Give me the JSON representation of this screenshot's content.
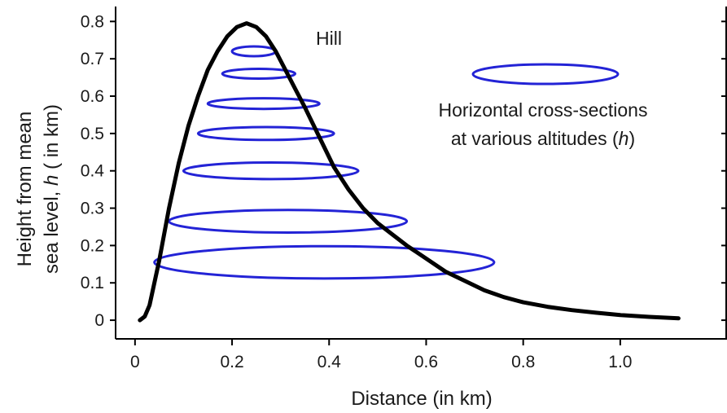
{
  "chart_data": {
    "type": "line",
    "title": "",
    "xlabel": "Distance (in km)",
    "ylabel_line1": "Height from mean",
    "ylabel_line2_prefix": "sea level, ",
    "ylabel_line2_var": "h",
    "ylabel_line2_suffix": " ( in km)",
    "xlim": [
      -0.04,
      1.22
    ],
    "ylim": [
      -0.05,
      0.84
    ],
    "x_ticks": [
      0,
      0.2,
      0.4,
      0.6,
      0.8,
      1.0
    ],
    "x_tick_labels": [
      "0",
      "0.2",
      "0.4",
      "0.6",
      "0.8",
      "1.0"
    ],
    "y_ticks": [
      0,
      0.1,
      0.2,
      0.3,
      0.4,
      0.5,
      0.6,
      0.7,
      0.8
    ],
    "y_tick_labels": [
      "0",
      "0.1",
      "0.2",
      "0.3",
      "0.4",
      "0.5",
      "0.6",
      "0.7",
      "0.8"
    ],
    "grid": false,
    "series": [
      {
        "name": "Hill",
        "color": "#000000",
        "x": [
          0.01,
          0.02,
          0.03,
          0.05,
          0.07,
          0.09,
          0.11,
          0.13,
          0.15,
          0.17,
          0.19,
          0.21,
          0.23,
          0.25,
          0.27,
          0.29,
          0.31,
          0.33,
          0.35,
          0.38,
          0.41,
          0.44,
          0.47,
          0.5,
          0.53,
          0.56,
          0.6,
          0.64,
          0.68,
          0.72,
          0.76,
          0.8,
          0.85,
          0.9,
          0.95,
          1.0,
          1.06,
          1.12
        ],
        "y": [
          0.0,
          0.01,
          0.04,
          0.16,
          0.3,
          0.42,
          0.52,
          0.6,
          0.67,
          0.72,
          0.76,
          0.785,
          0.795,
          0.785,
          0.76,
          0.72,
          0.67,
          0.62,
          0.57,
          0.49,
          0.41,
          0.35,
          0.3,
          0.26,
          0.23,
          0.2,
          0.165,
          0.13,
          0.105,
          0.08,
          0.062,
          0.048,
          0.036,
          0.027,
          0.02,
          0.014,
          0.009,
          0.005
        ]
      }
    ],
    "cross_sections": [
      {
        "h": 0.155,
        "x_min": 0.04,
        "x_max": 0.74
      },
      {
        "h": 0.265,
        "x_min": 0.07,
        "x_max": 0.56
      },
      {
        "h": 0.4,
        "x_min": 0.1,
        "x_max": 0.46
      },
      {
        "h": 0.5,
        "x_min": 0.13,
        "x_max": 0.41
      },
      {
        "h": 0.58,
        "x_min": 0.15,
        "x_max": 0.38
      },
      {
        "h": 0.66,
        "x_min": 0.18,
        "x_max": 0.33
      },
      {
        "h": 0.72,
        "x_min": 0.2,
        "x_max": 0.29
      }
    ],
    "cross_section_color": "#2323d6",
    "annotations": {
      "hill_label": "Hill",
      "legend_line1": "Horizontal cross-sections",
      "legend_line2_prefix": "at various altitudes (",
      "legend_line2_var": "h",
      "legend_line2_suffix": ")"
    }
  }
}
